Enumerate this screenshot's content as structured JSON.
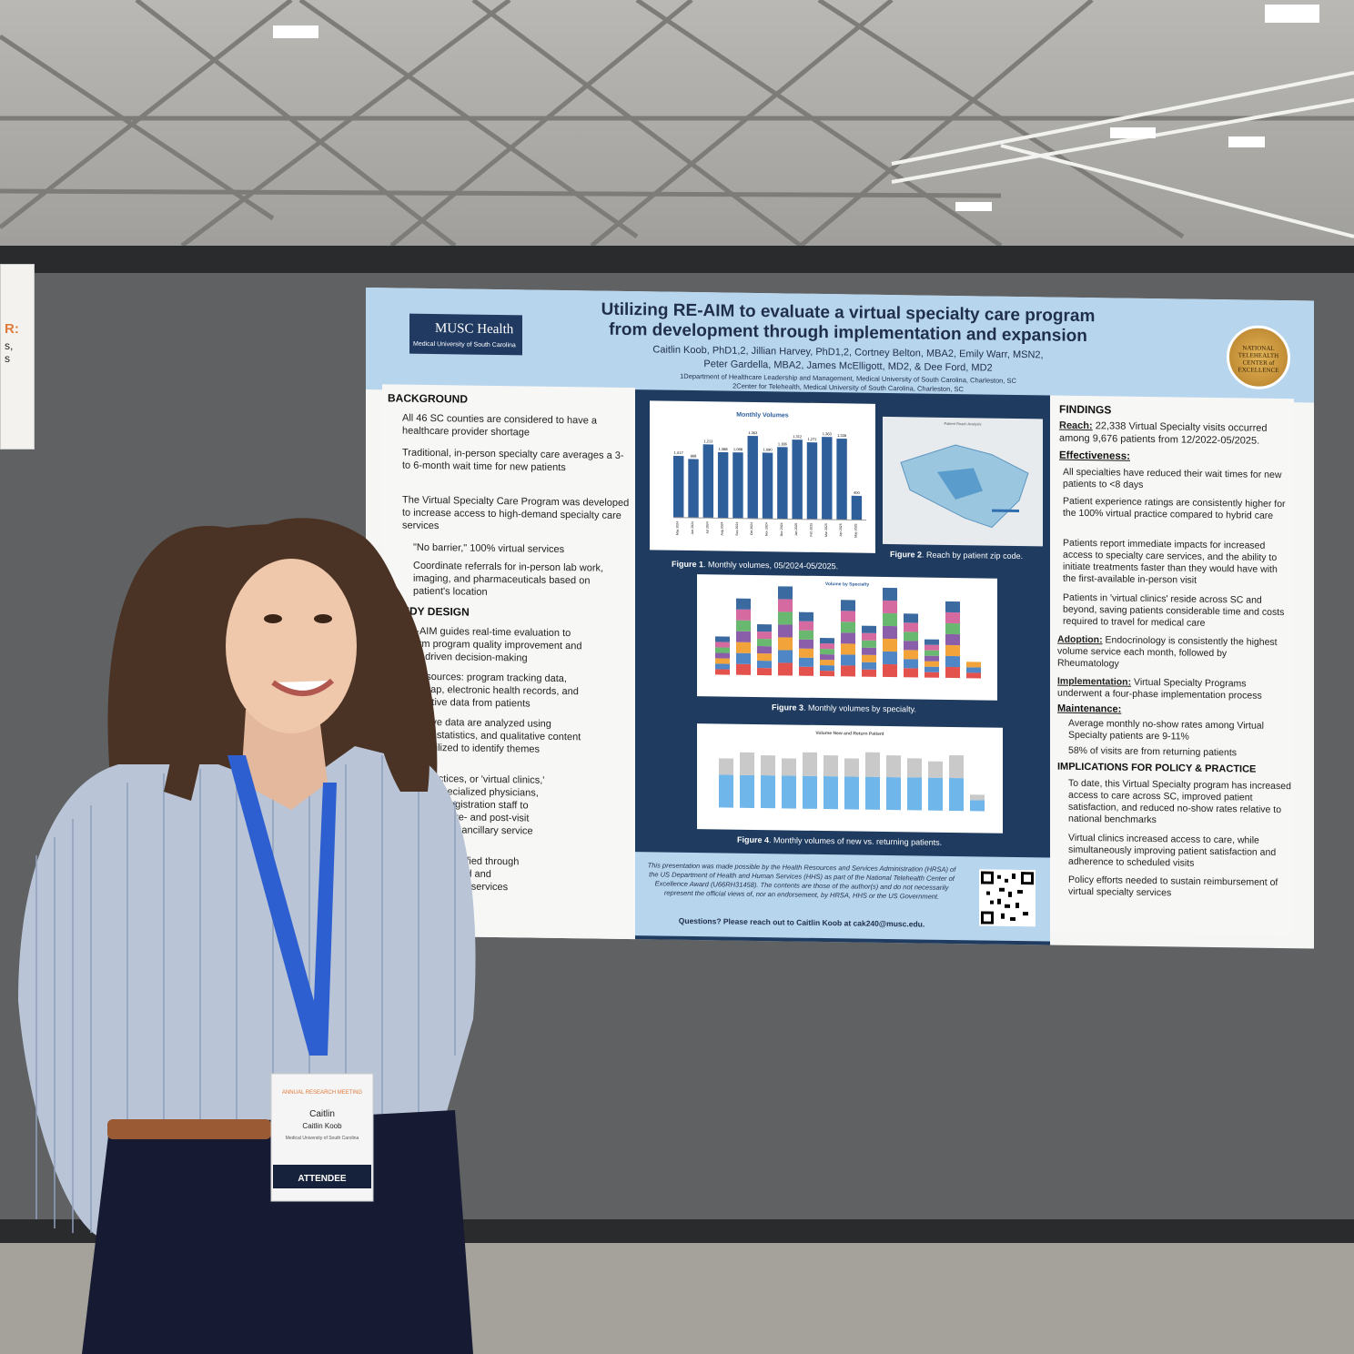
{
  "left_sign": {
    "accent": "R:",
    "line1": "s,",
    "line2": "s"
  },
  "poster": {
    "title_line1": "Utilizing RE-AIM to evaluate a virtual specialty care program",
    "title_line2": "from development through implementation and expansion",
    "authors_line1": "Caitlin Koob, PhD1,2, Jillian Harvey, PhD1,2, Cortney Belton, MBA2, Emily Warr, MSN2,",
    "authors_line2": "Peter Gardella, MBA2, James McElligott, MD2, & Dee Ford, MD2",
    "affiliation1": "1Department of Healthcare Leadership and Management, Medical University of South Carolina, Charleston, SC",
    "affiliation2": "2Center for Telehealth, Medical University of South Carolina, Charleston, SC",
    "logo_main": "MUSC Health",
    "logo_sub": "Medical University of South Carolina",
    "badge_text": "NATIONAL TELEHEALTH CENTER of EXCELLENCE",
    "background": {
      "heading": "BACKGROUND",
      "bullets": [
        "All 46 SC counties are considered to have a healthcare provider shortage",
        "Traditional, in-person specialty care averages a 3- to 6-month wait time for new patients",
        "The Virtual Specialty Care Program was developed to increase access to high-demand specialty care services",
        "\"No barrier,\" 100% virtual services",
        "Coordinate referrals for in-person lab work, imaging, and pharmaceuticals based on patient's location"
      ]
    },
    "study_design": {
      "heading": "STUDY DESIGN",
      "lines": [
        "RE-AIM guides real-time evaluation to",
        "inform program quality improvement and",
        "data-driven decision-making",
        "Data sources: program tracking data,",
        "REDCap, electronic health records, and",
        "qualitative data from patients",
        "antitative data are analyzed using",
        "criptive statistics, and qualitative content",
        "sis is utilized to identify themes",
        "ialty Practices, or 'virtual clinics,'",
        "ed with specialized physicians,",
        "rses, and registration staff to",
        "ts through pre- and post-visit",
        "low-ups, and ancillary service",
        "ies were identified through",
        "of high-demand and",
        "ability to virtual services"
      ]
    },
    "figure1": {
      "title": "Monthly Volumes",
      "caption_bold": "Figure 1",
      "caption": ". Monthly volumes, 05/2024-05/2025."
    },
    "figure2": {
      "title": "Patient Reach Analysis",
      "caption_bold": "Figure 2",
      "caption": ". Reach by patient zip code."
    },
    "figure3": {
      "title": "Volume by Specialty",
      "caption_bold": "Figure 3",
      "caption": ". Monthly volumes by specialty."
    },
    "figure4": {
      "title": "Volume New and Return Patient",
      "caption_bold": "Figure 4",
      "caption": ". Monthly volumes of new vs. returning patients."
    },
    "findings": {
      "heading": "FINDINGS",
      "reach_label": "Reach:",
      "reach_text": "22,338 Virtual Specialty visits occurred among 9,676 patients from 12/2022-05/2025.",
      "effectiveness_label": "Effectiveness:",
      "effectiveness_bullets": [
        "All specialties have reduced their wait times for new patients to <8 days",
        "Patient experience ratings are consistently higher for the 100% virtual practice compared to hybrid care",
        "Patients report immediate impacts for increased access to specialty care services, and the ability to initiate treatments faster than they would have with the first-available in-person visit",
        "Patients in 'virtual clinics' reside across SC and beyond, saving patients considerable time and costs required to travel for medical care"
      ],
      "adoption_label": "Adoption:",
      "adoption_text": "Endocrinology is consistently the highest volume service each month, followed by Rheumatology",
      "implementation_label": "Implementation:",
      "implementation_text": "Virtual Specialty Programs underwent a four-phase implementation process",
      "maintenance_label": "Maintenance:",
      "maintenance_bullets": [
        "Average monthly no-show rates among Virtual Specialty patients are 9-11%",
        "58% of visits are from returning patients"
      ],
      "implications_heading": "IMPLICATIONS FOR POLICY & PRACTICE",
      "implications_bullets": [
        "To date, this Virtual Specialty program has increased access to care across SC, improved patient satisfaction, and reduced no-show rates relative to national benchmarks",
        "Virtual clinics increased access to care, while simultaneously improving patient satisfaction and adherence to scheduled visits",
        "Policy efforts needed to sustain reimbursement of virtual specialty services"
      ]
    },
    "note": "This presentation was made possible by the Health Resources and Services Administration (HRSA) of the US Department of Health and Human Services (HHS) as part of the National Telehealth Center of Excellence Award (U66RH31458). The contents are those of the author(s) and do not necessarily represent the official views of, nor an endorsement, by HRSA, HHS or the US Government.",
    "questions": "Questions? Please reach out to Caitlin Koob at cak240@musc.edu."
  },
  "badge": {
    "event": "ANNUAL RESEARCH MEETING",
    "first_name": "Caitlin",
    "full_name": "Caitlin Koob",
    "org": "Medical University of South Carolina",
    "type": "ATTENDEE"
  },
  "chart_data": [
    {
      "type": "bar",
      "title": "Monthly Volumes",
      "categories": [
        "May 2024",
        "Jun 2024",
        "Jul 2024",
        "Aug 2024",
        "Sep 2024",
        "Oct 2024",
        "Nov 2024",
        "Dec 2024",
        "Jan 2025",
        "Feb 2025",
        "Mar 2025",
        "Apr 2025",
        "May 2025"
      ],
      "values": [
        1017,
        968,
        1213,
        1088,
        1088,
        1363,
        1090,
        1186,
        1312,
        1271,
        1363,
        1339,
        400
      ],
      "ylim": [
        0,
        1500
      ],
      "color": "#2f5f9b"
    }
  ]
}
